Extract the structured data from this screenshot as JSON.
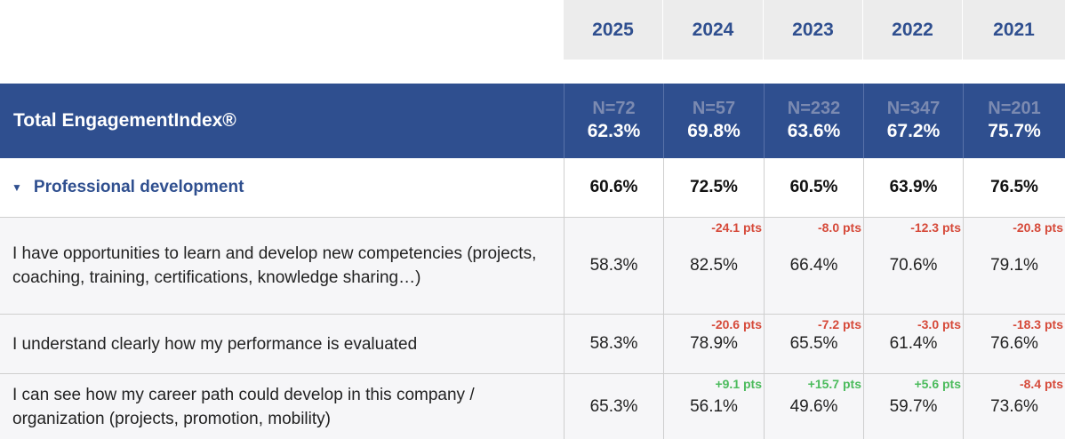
{
  "years": [
    "2025",
    "2024",
    "2023",
    "2022",
    "2021"
  ],
  "total": {
    "label": "Total EngagementIndex®",
    "cells": [
      {
        "n": "N=72",
        "value": "62.3%"
      },
      {
        "n": "N=57",
        "value": "69.8%"
      },
      {
        "n": "N=232",
        "value": "63.6%"
      },
      {
        "n": "N=347",
        "value": "67.2%"
      },
      {
        "n": "N=201",
        "value": "75.7%"
      }
    ]
  },
  "section": {
    "label": "Professional development",
    "values": [
      "60.6%",
      "72.5%",
      "60.5%",
      "63.9%",
      "76.5%"
    ]
  },
  "questions": [
    {
      "label": "I have opportunities to learn and develop new competencies (projects, coaching, training, certifications, knowledge sharing…)",
      "values": [
        "58.3%",
        "82.5%",
        "66.4%",
        "70.6%",
        "79.1%"
      ],
      "deltas": [
        "",
        "-24.1 pts",
        "-8.0 pts",
        "-12.3 pts",
        "-20.8 pts"
      ]
    },
    {
      "label": "I understand clearly how my performance is evaluated",
      "values": [
        "58.3%",
        "78.9%",
        "65.5%",
        "61.4%",
        "76.6%"
      ],
      "deltas": [
        "",
        "-20.6 pts",
        "-7.2 pts",
        "-3.0 pts",
        "-18.3 pts"
      ]
    },
    {
      "label": "I can see how my career path could develop in this company / organization (projects, promotion, mobility)",
      "values": [
        "65.3%",
        "56.1%",
        "49.6%",
        "59.7%",
        "73.6%"
      ],
      "deltas": [
        "",
        "+9.1 pts",
        "+15.7 pts",
        "+5.6 pts",
        "-8.4 pts"
      ]
    }
  ],
  "colors": {
    "header_bg": "#2f4f8f",
    "negative": "#d64a3a",
    "positive": "#4bbb5c"
  }
}
